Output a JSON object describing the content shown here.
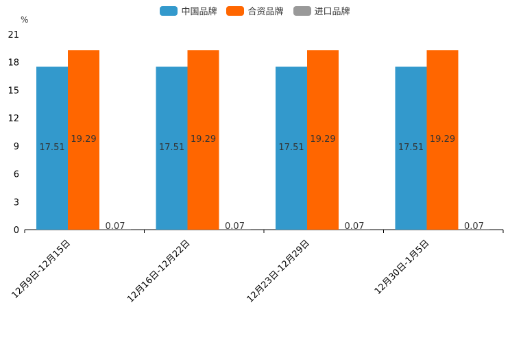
{
  "chart_data": {
    "type": "bar",
    "unit_label": "%",
    "categories": [
      "12月9日-12月15日",
      "12月16日-12月22日",
      "12月23日-12月29日",
      "12月30日-1月5日"
    ],
    "series": [
      {
        "name": "中国品牌",
        "color": "#3399cc",
        "values": [
          17.51,
          17.51,
          17.51,
          17.51
        ]
      },
      {
        "name": "合资品牌",
        "color": "#ff6600",
        "values": [
          19.29,
          19.29,
          19.29,
          19.29
        ]
      },
      {
        "name": "进口品牌",
        "color": "#999999",
        "values": [
          0.07,
          0.07,
          0.07,
          0.07
        ]
      }
    ],
    "ylim": [
      0,
      21
    ],
    "yticks": [
      0,
      3,
      6,
      9,
      12,
      15,
      18,
      21
    ],
    "legend_position": "top-center",
    "grid": false
  }
}
